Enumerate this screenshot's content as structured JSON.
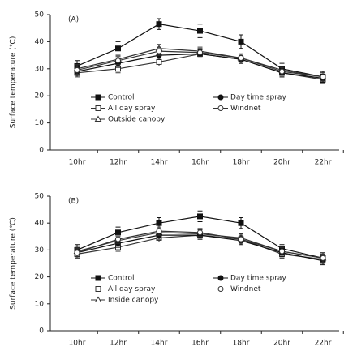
{
  "chart_data": [
    {
      "type": "line",
      "annotation": "(A)",
      "ylabel": "Surface temperature (℃)",
      "categories": [
        "10hr",
        "12hr",
        "14hr",
        "16hr",
        "18hr",
        "20hr",
        "22hr"
      ],
      "ylim": [
        0,
        50
      ],
      "yticks": [
        0,
        10,
        20,
        30,
        40,
        50
      ],
      "series": [
        {
          "name": "Control",
          "marker": "filled-square",
          "color": "#111",
          "values": [
            31,
            37.5,
            46.5,
            44,
            40,
            30,
            27
          ],
          "errors": [
            2,
            2.5,
            2,
            2.5,
            2.5,
            2,
            2
          ]
        },
        {
          "name": "All day spray",
          "marker": "open-square",
          "color": "#333",
          "values": [
            28.5,
            30,
            32.5,
            35.5,
            33.5,
            28.5,
            26
          ],
          "errors": [
            1.5,
            1.5,
            1.5,
            1.5,
            1.5,
            1.5,
            1.5
          ]
        },
        {
          "name": "Outside canopy",
          "marker": "open-triangle",
          "color": "#333",
          "values": [
            30,
            33.5,
            37.5,
            36.5,
            34,
            29.5,
            27
          ],
          "errors": [
            1.5,
            1.5,
            1.5,
            1.5,
            1.5,
            1.5,
            1.5
          ]
        },
        {
          "name": "Day time spray",
          "marker": "filled-circle",
          "color": "#111",
          "values": [
            29,
            32,
            35,
            35.5,
            33.5,
            28.5,
            26.5
          ],
          "errors": [
            1.5,
            1.5,
            1.5,
            1.5,
            1.5,
            1.5,
            1.5
          ]
        },
        {
          "name": "Windnet",
          "marker": "open-circle",
          "color": "#333",
          "values": [
            29.5,
            33,
            36.5,
            36,
            34,
            29,
            27
          ],
          "errors": [
            1.5,
            1.5,
            1.5,
            1.5,
            1.5,
            1.5,
            1.5
          ]
        }
      ]
    },
    {
      "type": "line",
      "annotation": "(B)",
      "ylabel": "Surface temperature (℃)",
      "categories": [
        "10hr",
        "12hr",
        "14hr",
        "16hr",
        "18hr",
        "20hr",
        "22hr"
      ],
      "ylim": [
        0,
        50
      ],
      "yticks": [
        0,
        10,
        20,
        30,
        40,
        50
      ],
      "series": [
        {
          "name": "Control",
          "marker": "filled-square",
          "color": "#111",
          "values": [
            30,
            36.5,
            40,
            42.5,
            40,
            30.5,
            27
          ],
          "errors": [
            2,
            2,
            2,
            2,
            2,
            1.5,
            2
          ]
        },
        {
          "name": "All day spray",
          "marker": "open-square",
          "color": "#333",
          "values": [
            28.5,
            31,
            34.5,
            35.5,
            34,
            28.5,
            26.5
          ],
          "errors": [
            1.5,
            1.5,
            1.5,
            1.5,
            1.5,
            1.5,
            1.5
          ]
        },
        {
          "name": "Inside canopy",
          "marker": "open-triangle",
          "color": "#333",
          "values": [
            29.5,
            33.5,
            36.5,
            36,
            34.5,
            29.5,
            27
          ],
          "errors": [
            1.5,
            1.5,
            1.5,
            1.5,
            1.5,
            1.5,
            1.5
          ]
        },
        {
          "name": "Day time spray",
          "marker": "filled-circle",
          "color": "#111",
          "values": [
            29,
            32.5,
            35.5,
            35.5,
            33.5,
            29,
            26
          ],
          "errors": [
            1.5,
            1.5,
            1.5,
            1.5,
            1.5,
            1.5,
            1.5
          ]
        },
        {
          "name": "Windnet",
          "marker": "open-circle",
          "color": "#333",
          "values": [
            29,
            34,
            37,
            36.5,
            34,
            29.5,
            27
          ],
          "errors": [
            1.5,
            1.5,
            1.5,
            1.5,
            1.5,
            1.5,
            1.5
          ]
        }
      ]
    }
  ]
}
